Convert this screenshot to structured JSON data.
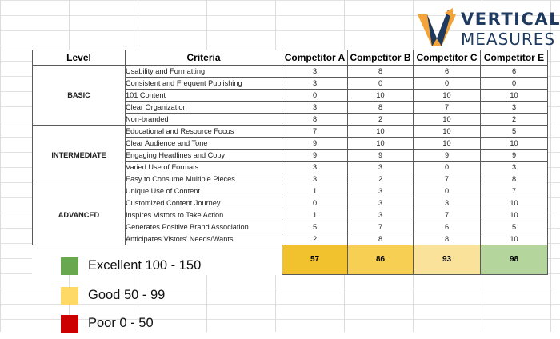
{
  "logo": {
    "line1": "VERTICAL",
    "line2": "MEASURES"
  },
  "headers": {
    "level": "Level",
    "criteria": "Criteria",
    "competitors": [
      "Competitor A",
      "Competitor B",
      "Competitor C",
      "Competitor E"
    ]
  },
  "groups": [
    {
      "level": "BASIC",
      "rows": [
        {
          "criteria": "Usability and Formatting",
          "scores": [
            "3",
            "8",
            "6",
            "6"
          ]
        },
        {
          "criteria": "Consistent and Frequent Publishing",
          "scores": [
            "3",
            "0",
            "0",
            "0"
          ]
        },
        {
          "criteria": "101 Content",
          "scores": [
            "0",
            "10",
            "10",
            "10"
          ]
        },
        {
          "criteria": "Clear Organization",
          "scores": [
            "3",
            "8",
            "7",
            "3"
          ]
        },
        {
          "criteria": "Non-branded",
          "scores": [
            "8",
            "2",
            "10",
            "2"
          ]
        }
      ]
    },
    {
      "level": "INTERMEDIATE",
      "rows": [
        {
          "criteria": "Educational and Resource Focus",
          "scores": [
            "7",
            "10",
            "10",
            "5"
          ]
        },
        {
          "criteria": "Clear Audience and Tone",
          "scores": [
            "9",
            "10",
            "10",
            "10"
          ]
        },
        {
          "criteria": "Engaging Headlines and Copy",
          "scores": [
            "9",
            "9",
            "9",
            "9"
          ]
        },
        {
          "criteria": "Varied Use of Formats",
          "scores": [
            "3",
            "3",
            "0",
            "3"
          ]
        },
        {
          "criteria": "Easy to Consume Multiple Pieces",
          "scores": [
            "3",
            "2",
            "7",
            "8"
          ]
        }
      ]
    },
    {
      "level": "ADVANCED",
      "rows": [
        {
          "criteria": "Unique Use of Content",
          "scores": [
            "1",
            "3",
            "0",
            "7"
          ]
        },
        {
          "criteria": "Customized Content Journey",
          "scores": [
            "0",
            "3",
            "3",
            "10"
          ]
        },
        {
          "criteria": "Inspires Vistors to Take Action",
          "scores": [
            "1",
            "3",
            "7",
            "10"
          ]
        },
        {
          "criteria": "Generates Positive Brand Association",
          "scores": [
            "5",
            "7",
            "6",
            "5"
          ]
        },
        {
          "criteria": "Anticipates Vistors' Needs/Wants",
          "scores": [
            "2",
            "8",
            "8",
            "10"
          ]
        }
      ]
    }
  ],
  "totals": [
    {
      "value": "57",
      "color": "#f2c12e"
    },
    {
      "value": "86",
      "color": "#f6cf53"
    },
    {
      "value": "93",
      "color": "#fbe29a"
    },
    {
      "value": "98",
      "color": "#b4d69c"
    }
  ],
  "legend": [
    {
      "label": "Excellent 100 - 150",
      "color": "#6aa84f"
    },
    {
      "label": "Good 50 - 99",
      "color": "#ffd966"
    },
    {
      "label": "Poor 0 - 50",
      "color": "#cc0000"
    }
  ]
}
